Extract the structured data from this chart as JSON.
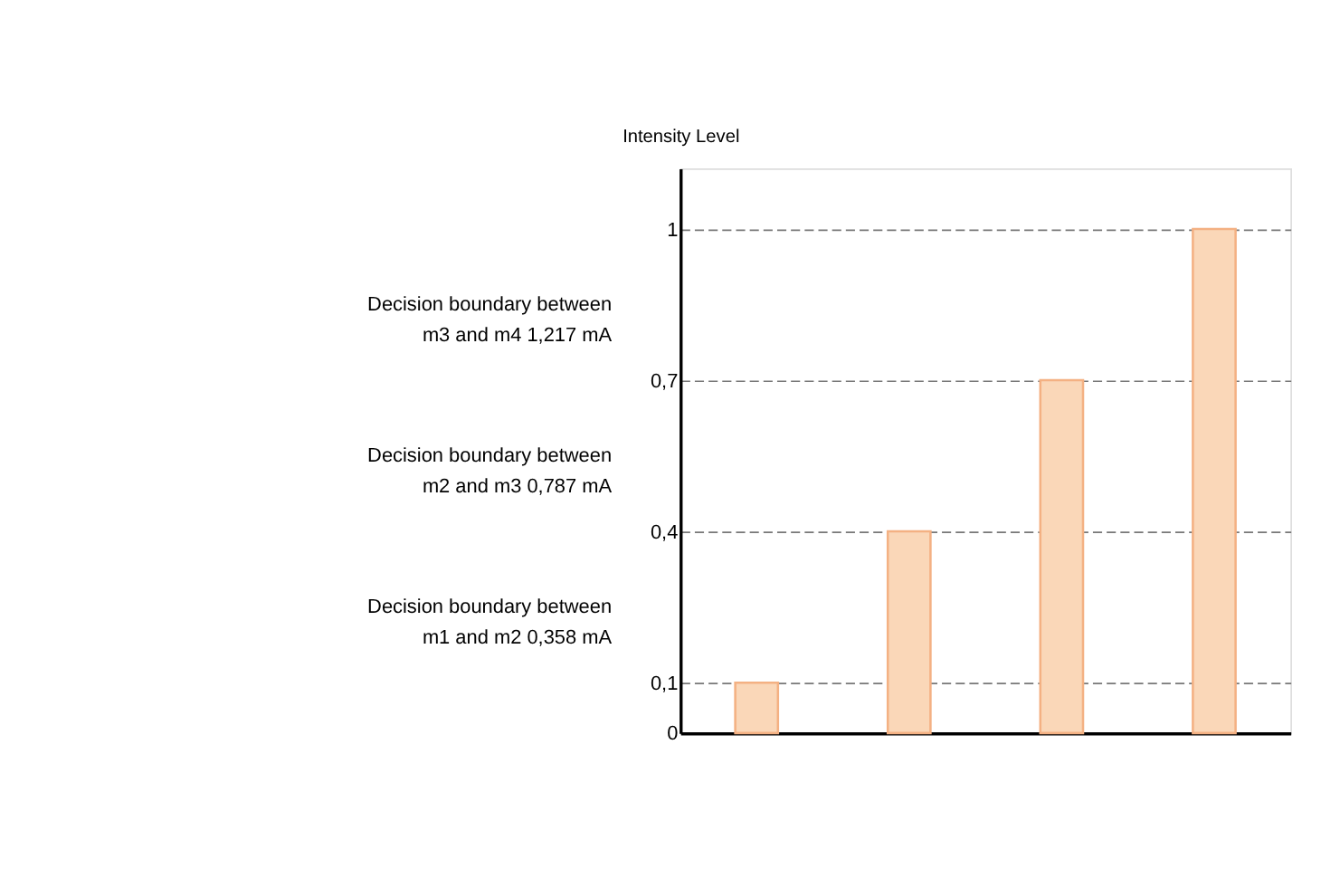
{
  "chart_data": {
    "type": "bar",
    "ylabel": "Intensity Level",
    "categories": [
      null,
      null,
      null,
      null
    ],
    "series": [
      {
        "color": "#fad7b8",
        "values": [
          0.1,
          0.4,
          0.7,
          1
        ]
      }
    ],
    "ylim": [
      0,
      1.12
    ],
    "yticks": [
      0,
      {
        "value": 0.1,
        "label": "0,1"
      },
      {
        "value": 0.4,
        "label": "0,4"
      },
      {
        "value": 0.7,
        "label": "0,7"
      },
      1
    ],
    "grid": "y",
    "line_style": "dashed",
    "annotations": [
      "Decision boundary between\nm1 and m2 0,358 mA",
      "Decision boundary between\nm2 and m3 0,787 mA",
      "Decision boundary between\nm3 and m4 1,217 mA"
    ]
  }
}
